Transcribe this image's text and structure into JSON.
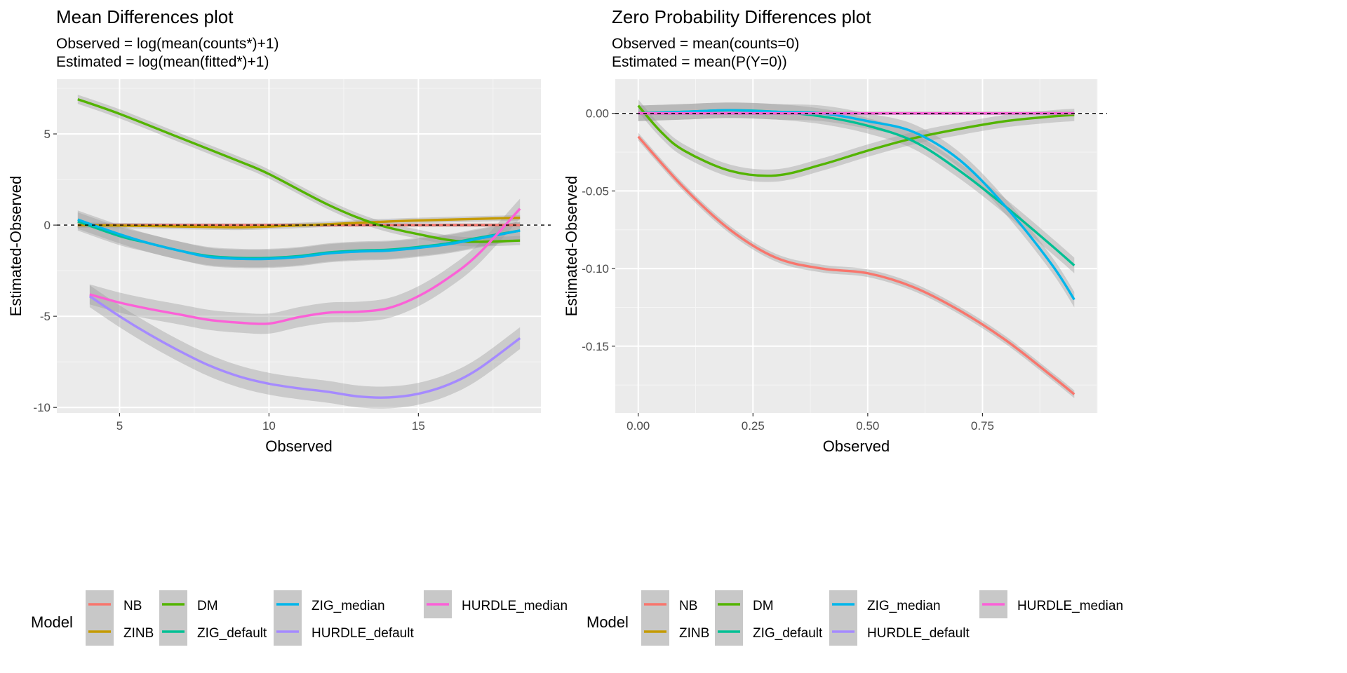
{
  "chart_data": [
    {
      "type": "line",
      "title": "Mean Differences plot",
      "subtitle": [
        "Observed = log(mean(counts*)+1)",
        "Estimated = log(mean(fitted*)+1)"
      ],
      "xlabel": "Observed",
      "ylabel": "Estimated-Observed",
      "xlim": [
        2.9,
        19.1
      ],
      "ylim": [
        -10.3,
        8.0
      ],
      "xticks": [
        5,
        10,
        15
      ],
      "xtick_labels": [
        "5",
        "10",
        "15"
      ],
      "yticks": [
        -10,
        -5,
        0,
        5
      ],
      "ytick_labels": [
        "-10",
        "-5",
        "0",
        "5"
      ],
      "reference_line": 0,
      "grid": true,
      "legend_position": "bottom",
      "series": [
        {
          "name": "NB",
          "color": "#F8766D",
          "ribbon": 0.1,
          "x": [
            3.6,
            6,
            8,
            10,
            12,
            14,
            16,
            18.4
          ],
          "y": [
            0.0,
            0.0,
            0.0,
            0.0,
            0.0,
            0.0,
            0.0,
            0.0
          ]
        },
        {
          "name": "ZINB",
          "color": "#C49A00",
          "ribbon": 0.15,
          "x": [
            3.6,
            6,
            8,
            9,
            10,
            12,
            14,
            16,
            18.4
          ],
          "y": [
            0.0,
            -0.05,
            -0.1,
            -0.12,
            -0.08,
            0.05,
            0.2,
            0.3,
            0.4
          ]
        },
        {
          "name": "DM",
          "color": "#53B400",
          "ribbon": 0.25,
          "x": [
            3.6,
            5,
            7,
            9,
            10,
            12,
            13.5,
            15,
            16.5,
            18.4
          ],
          "y": [
            6.9,
            6.1,
            4.8,
            3.5,
            2.8,
            1.1,
            0.1,
            -0.5,
            -0.9,
            -0.85
          ]
        },
        {
          "name": "ZIG_default",
          "color": "#00C094",
          "ribbon": 0.5,
          "x": [
            3.6,
            5,
            6,
            7,
            8,
            9,
            10,
            11,
            12,
            13,
            14,
            15,
            16,
            17,
            18.4
          ],
          "y": [
            0.2,
            -0.6,
            -1.0,
            -1.4,
            -1.7,
            -1.8,
            -1.8,
            -1.7,
            -1.5,
            -1.4,
            -1.35,
            -1.2,
            -1.0,
            -0.7,
            -0.3
          ]
        },
        {
          "name": "ZIG_median",
          "color": "#00B6EB",
          "ribbon": 0.5,
          "x": [
            3.6,
            5,
            6,
            7,
            8,
            9,
            10,
            11,
            12,
            13,
            14,
            15,
            16,
            17,
            18.4
          ],
          "y": [
            0.3,
            -0.5,
            -1.0,
            -1.4,
            -1.75,
            -1.85,
            -1.85,
            -1.75,
            -1.55,
            -1.45,
            -1.4,
            -1.25,
            -1.05,
            -0.75,
            -0.3
          ]
        },
        {
          "name": "HURDLE_default",
          "color": "#A58AFF",
          "ribbon": 0.6,
          "x": [
            4,
            5,
            6,
            7,
            8,
            9,
            10,
            11,
            12,
            13,
            14,
            15,
            16,
            17,
            18.4
          ],
          "y": [
            -3.9,
            -5.0,
            -6.0,
            -6.9,
            -7.7,
            -8.3,
            -8.7,
            -8.95,
            -9.15,
            -9.4,
            -9.45,
            -9.25,
            -8.75,
            -7.9,
            -6.2
          ]
        },
        {
          "name": "HURDLE_median",
          "color": "#FB61D7",
          "ribbon": 0.55,
          "x": [
            4,
            5,
            6,
            7,
            8,
            9,
            10,
            11,
            12,
            13,
            14,
            15,
            16,
            17,
            18.4
          ],
          "y": [
            -3.8,
            -4.25,
            -4.6,
            -4.9,
            -5.2,
            -5.35,
            -5.4,
            -5.05,
            -4.8,
            -4.75,
            -4.55,
            -3.9,
            -2.9,
            -1.6,
            0.9
          ]
        }
      ]
    },
    {
      "type": "line",
      "title": "Zero Probability Differences plot",
      "subtitle": [
        "Observed = mean(counts=0)",
        "Estimated = mean(P(Y=0))"
      ],
      "xlabel": "Observed",
      "ylabel": "Estimated-Observed",
      "xlim": [
        -0.05,
        1.0
      ],
      "ylim": [
        -0.193,
        0.022
      ],
      "xticks": [
        0,
        0.25,
        0.5,
        0.75
      ],
      "xtick_labels": [
        "0.00",
        "0.25",
        "0.50",
        "0.75"
      ],
      "yticks": [
        -0.15,
        -0.1,
        -0.05,
        0.0
      ],
      "ytick_labels": [
        "-0.15",
        "-0.10",
        "-0.05",
        "0.00"
      ],
      "reference_line": 0,
      "grid": true,
      "legend_position": "bottom",
      "series": [
        {
          "name": "NB",
          "color": "#F8766D",
          "ribbon": 0.0025,
          "x": [
            0,
            0.1,
            0.2,
            0.3,
            0.4,
            0.5,
            0.6,
            0.7,
            0.8,
            0.9,
            0.95
          ],
          "y": [
            -0.015,
            -0.048,
            -0.075,
            -0.093,
            -0.1,
            -0.103,
            -0.112,
            -0.127,
            -0.146,
            -0.169,
            -0.181
          ]
        },
        {
          "name": "ZINB",
          "color": "#C49A00",
          "ribbon": 0.001,
          "x": [
            0,
            0.2,
            0.4,
            0.6,
            0.8,
            0.95
          ],
          "y": [
            0.0,
            0.0,
            0.0,
            0.0,
            0.0,
            0.0
          ]
        },
        {
          "name": "DM",
          "color": "#53B400",
          "ribbon": 0.004,
          "x": [
            0,
            0.05,
            0.1,
            0.2,
            0.3,
            0.4,
            0.5,
            0.6,
            0.7,
            0.8,
            0.9,
            0.95
          ],
          "y": [
            0.005,
            -0.012,
            -0.024,
            -0.037,
            -0.04,
            -0.033,
            -0.024,
            -0.016,
            -0.01,
            -0.005,
            -0.002,
            -0.001
          ]
        },
        {
          "name": "ZIG_default",
          "color": "#00C094",
          "ribbon": 0.005,
          "x": [
            0,
            0.1,
            0.2,
            0.3,
            0.4,
            0.5,
            0.6,
            0.7,
            0.8,
            0.9,
            0.95
          ],
          "y": [
            0.0,
            0.001,
            0.002,
            0.001,
            -0.002,
            -0.008,
            -0.018,
            -0.037,
            -0.06,
            -0.085,
            -0.098
          ]
        },
        {
          "name": "ZIG_median",
          "color": "#00B6EB",
          "ribbon": 0.005,
          "x": [
            0,
            0.1,
            0.2,
            0.3,
            0.4,
            0.5,
            0.6,
            0.7,
            0.8,
            0.9,
            0.95
          ],
          "y": [
            0.0,
            0.001,
            0.002,
            0.001,
            0.0,
            -0.005,
            -0.012,
            -0.03,
            -0.06,
            -0.097,
            -0.12
          ]
        },
        {
          "name": "HURDLE_default",
          "color": "#A58AFF",
          "ribbon": 0.001,
          "x": [
            0,
            0.2,
            0.4,
            0.6,
            0.8,
            0.95
          ],
          "y": [
            0.0,
            0.0,
            0.0,
            0.0,
            0.0,
            0.0
          ]
        },
        {
          "name": "HURDLE_median",
          "color": "#FB61D7",
          "ribbon": 0.001,
          "x": [
            0,
            0.2,
            0.4,
            0.6,
            0.8,
            0.95
          ],
          "y": [
            0.0,
            0.0,
            0.0,
            0.0,
            0.0,
            0.0
          ]
        }
      ]
    }
  ],
  "legend": {
    "title": "Model",
    "entries": [
      {
        "name": "NB",
        "color": "#F8766D"
      },
      {
        "name": "ZINB",
        "color": "#C49A00"
      },
      {
        "name": "DM",
        "color": "#53B400"
      },
      {
        "name": "ZIG_default",
        "color": "#00C094"
      },
      {
        "name": "ZIG_median",
        "color": "#00B6EB"
      },
      {
        "name": "HURDLE_default",
        "color": "#A58AFF"
      },
      {
        "name": "HURDLE_median",
        "color": "#FB61D7"
      }
    ]
  }
}
